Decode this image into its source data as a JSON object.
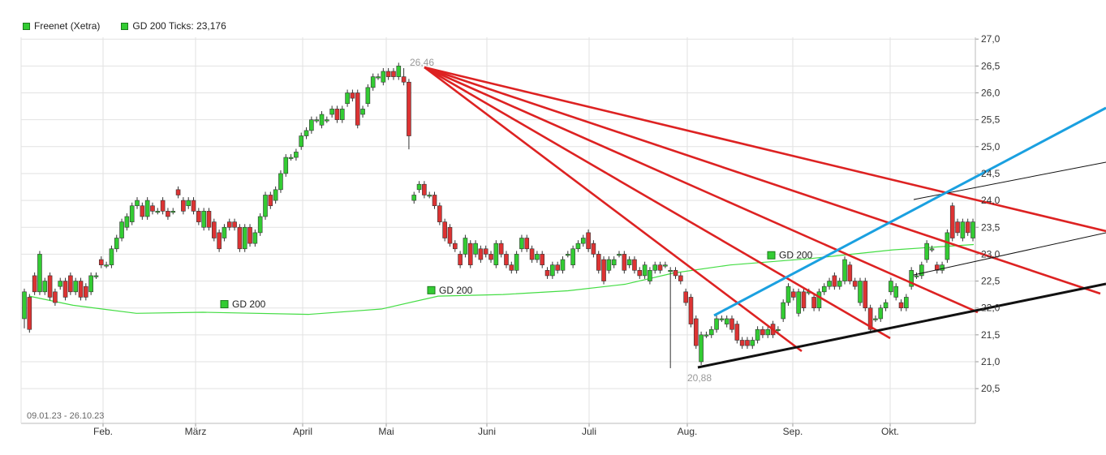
{
  "legend": {
    "items": [
      {
        "label": "Freenet (Xetra)",
        "color": "#33cc33"
      },
      {
        "label": "GD 200 Ticks: 23,176",
        "color": "#33cc33"
      }
    ]
  },
  "chart_data": {
    "type": "candlestick",
    "date_range": "09.01.23 - 26.10.23",
    "x_tick_labels": [
      "Feb.",
      "März",
      "April",
      "Mai",
      "Juni",
      "Juli",
      "Aug.",
      "Sep.",
      "Okt."
    ],
    "y_tick_labels": [
      "27,0",
      "26,5",
      "26,0",
      "25,5",
      "25,0",
      "24,5",
      "24,0",
      "23,5",
      "23,0",
      "22,5",
      "22,0",
      "21,5",
      "21,0",
      "20,5"
    ],
    "ylim": [
      20.0,
      27.0
    ],
    "grid": true,
    "annotations": {
      "high": "26,46",
      "low": "20,88"
    },
    "gd200_labels": [
      "GD 200",
      "GD 200",
      "GD 200"
    ],
    "up_color": "#33cc33",
    "down_color": "#dd3333",
    "trend_colors": {
      "red": "#dd2222",
      "blue": "#1aa0e0",
      "black": "#111111",
      "gd200": "#44dd44"
    },
    "candles_mo": [
      [
        21.8,
        22.3
      ],
      [
        22.2,
        21.6
      ],
      [
        22.6,
        22.3
      ],
      [
        22.3,
        23.0
      ],
      [
        22.3,
        22.5
      ],
      [
        22.6,
        22.2
      ],
      [
        22.3,
        22.1
      ],
      [
        22.4,
        22.5
      ],
      [
        22.5,
        22.2
      ],
      [
        22.6,
        22.3
      ],
      [
        22.3,
        22.5
      ],
      [
        22.5,
        22.2
      ],
      [
        22.4,
        22.2
      ],
      [
        22.3,
        22.6
      ],
      [
        22.6,
        22.6
      ],
      [
        22.9,
        22.8
      ],
      [
        22.8,
        22.8
      ],
      [
        22.8,
        23.1
      ],
      [
        23.1,
        23.3
      ],
      [
        23.3,
        23.6
      ],
      [
        23.5,
        23.7
      ],
      [
        23.6,
        23.9
      ],
      [
        23.9,
        24.0
      ],
      [
        23.9,
        23.7
      ],
      [
        23.7,
        24.0
      ],
      [
        23.9,
        23.8
      ],
      [
        23.8,
        23.8
      ],
      [
        24.0,
        23.8
      ],
      [
        23.8,
        23.7
      ],
      [
        23.8,
        23.8
      ],
      [
        24.2,
        24.1
      ],
      [
        24.0,
        23.8
      ],
      [
        23.9,
        24.0
      ],
      [
        24.0,
        23.8
      ],
      [
        23.8,
        23.6
      ],
      [
        23.5,
        23.8
      ],
      [
        23.8,
        23.5
      ],
      [
        23.6,
        23.3
      ],
      [
        23.4,
        23.1
      ],
      [
        23.3,
        23.5
      ],
      [
        23.6,
        23.5
      ],
      [
        23.6,
        23.5
      ],
      [
        23.5,
        23.1
      ],
      [
        23.1,
        23.5
      ],
      [
        23.5,
        23.2
      ],
      [
        23.2,
        23.4
      ],
      [
        23.4,
        23.7
      ],
      [
        23.7,
        24.1
      ],
      [
        24.1,
        23.9
      ],
      [
        24.0,
        24.2
      ],
      [
        24.2,
        24.5
      ],
      [
        24.5,
        24.8
      ],
      [
        24.8,
        24.8
      ],
      [
        24.8,
        24.9
      ],
      [
        25.0,
        25.2
      ],
      [
        25.2,
        25.3
      ],
      [
        25.3,
        25.5
      ],
      [
        25.5,
        25.5
      ],
      [
        25.4,
        25.6
      ],
      [
        25.5,
        25.5
      ],
      [
        25.6,
        25.7
      ],
      [
        25.7,
        25.5
      ],
      [
        25.5,
        25.7
      ],
      [
        25.8,
        26.0
      ],
      [
        26.0,
        25.9
      ],
      [
        26.0,
        25.4
      ],
      [
        25.6,
        25.7
      ],
      [
        25.8,
        26.1
      ],
      [
        26.1,
        26.3
      ],
      [
        26.3,
        26.3
      ],
      [
        26.2,
        26.4
      ],
      [
        26.4,
        26.3
      ],
      [
        26.4,
        26.3
      ],
      [
        26.3,
        26.5
      ],
      [
        26.3,
        26.2
      ],
      [
        26.2,
        25.2
      ],
      [
        24.0,
        24.1
      ],
      [
        24.2,
        24.3
      ],
      [
        24.3,
        24.1
      ],
      [
        24.1,
        24.1
      ],
      [
        24.1,
        23.9
      ],
      [
        23.9,
        23.6
      ],
      [
        23.6,
        23.3
      ],
      [
        23.5,
        23.2
      ],
      [
        23.2,
        23.1
      ],
      [
        23.0,
        22.8
      ],
      [
        23.0,
        23.3
      ],
      [
        23.2,
        22.8
      ],
      [
        23.0,
        23.2
      ],
      [
        23.1,
        22.9
      ],
      [
        23.1,
        23.0
      ],
      [
        23.0,
        22.9
      ],
      [
        22.8,
        23.2
      ],
      [
        23.2,
        23.0
      ],
      [
        23.0,
        22.8
      ],
      [
        22.8,
        22.7
      ],
      [
        22.7,
        23.0
      ],
      [
        23.1,
        23.3
      ],
      [
        23.3,
        23.1
      ],
      [
        23.1,
        22.9
      ],
      [
        22.9,
        23.0
      ],
      [
        23.0,
        22.8
      ],
      [
        22.7,
        22.6
      ],
      [
        22.6,
        22.8
      ],
      [
        22.8,
        22.7
      ],
      [
        22.7,
        22.9
      ],
      [
        23.0,
        23.0
      ],
      [
        22.8,
        23.1
      ],
      [
        23.1,
        23.2
      ],
      [
        23.2,
        23.3
      ],
      [
        23.4,
        23.1
      ],
      [
        23.2,
        23.0
      ],
      [
        23.0,
        22.7
      ],
      [
        22.9,
        22.5
      ],
      [
        22.7,
        22.9
      ],
      [
        22.8,
        22.9
      ],
      [
        23.0,
        23.0
      ],
      [
        23.0,
        22.7
      ],
      [
        22.8,
        22.9
      ],
      [
        22.9,
        22.7
      ],
      [
        22.7,
        22.6
      ],
      [
        22.6,
        22.8
      ],
      [
        22.5,
        22.7
      ],
      [
        22.7,
        22.8
      ],
      [
        22.8,
        22.7
      ],
      [
        22.8,
        22.8
      ],
      [
        22.7,
        22.7
      ],
      [
        22.7,
        22.6
      ],
      [
        22.6,
        22.5
      ],
      [
        22.3,
        22.1
      ],
      [
        22.2,
        21.7
      ],
      [
        21.8,
        21.3
      ],
      [
        21.0,
        21.5
      ],
      [
        21.5,
        21.5
      ],
      [
        21.5,
        21.6
      ],
      [
        21.6,
        21.8
      ],
      [
        21.8,
        21.8
      ],
      [
        21.7,
        21.8
      ],
      [
        21.8,
        21.6
      ],
      [
        21.7,
        21.4
      ],
      [
        21.4,
        21.3
      ],
      [
        21.4,
        21.3
      ],
      [
        21.3,
        21.4
      ],
      [
        21.4,
        21.6
      ],
      [
        21.6,
        21.5
      ],
      [
        21.5,
        21.6
      ],
      [
        21.7,
        21.5
      ],
      [
        21.6,
        21.6
      ],
      [
        21.8,
        22.1
      ],
      [
        22.1,
        22.4
      ],
      [
        22.3,
        22.2
      ],
      [
        21.9,
        22.3
      ],
      [
        22.3,
        22.0
      ],
      [
        22.3,
        22.3
      ],
      [
        22.2,
        22.0
      ],
      [
        22.0,
        22.3
      ],
      [
        22.3,
        22.4
      ],
      [
        22.4,
        22.5
      ],
      [
        22.6,
        22.4
      ],
      [
        22.4,
        22.5
      ],
      [
        22.5,
        22.9
      ],
      [
        22.8,
        22.5
      ],
      [
        22.5,
        22.4
      ],
      [
        22.1,
        22.5
      ],
      [
        22.5,
        22.0
      ],
      [
        22.0,
        21.6
      ],
      [
        21.8,
        21.8
      ],
      [
        21.8,
        22.0
      ],
      [
        22.0,
        22.1
      ],
      [
        22.3,
        22.5
      ],
      [
        22.2,
        22.4
      ],
      [
        22.1,
        22.0
      ],
      [
        22.0,
        22.2
      ],
      [
        22.4,
        22.7
      ],
      [
        22.6,
        22.6
      ],
      [
        22.6,
        22.8
      ],
      [
        22.9,
        23.2
      ],
      [
        23.1,
        23.1
      ],
      [
        22.8,
        22.7
      ],
      [
        22.7,
        22.8
      ],
      [
        22.9,
        23.4
      ],
      [
        23.9,
        23.3
      ],
      [
        23.6,
        23.4
      ],
      [
        23.3,
        23.6
      ],
      [
        23.6,
        23.4
      ],
      [
        23.3,
        23.6
      ]
    ]
  }
}
